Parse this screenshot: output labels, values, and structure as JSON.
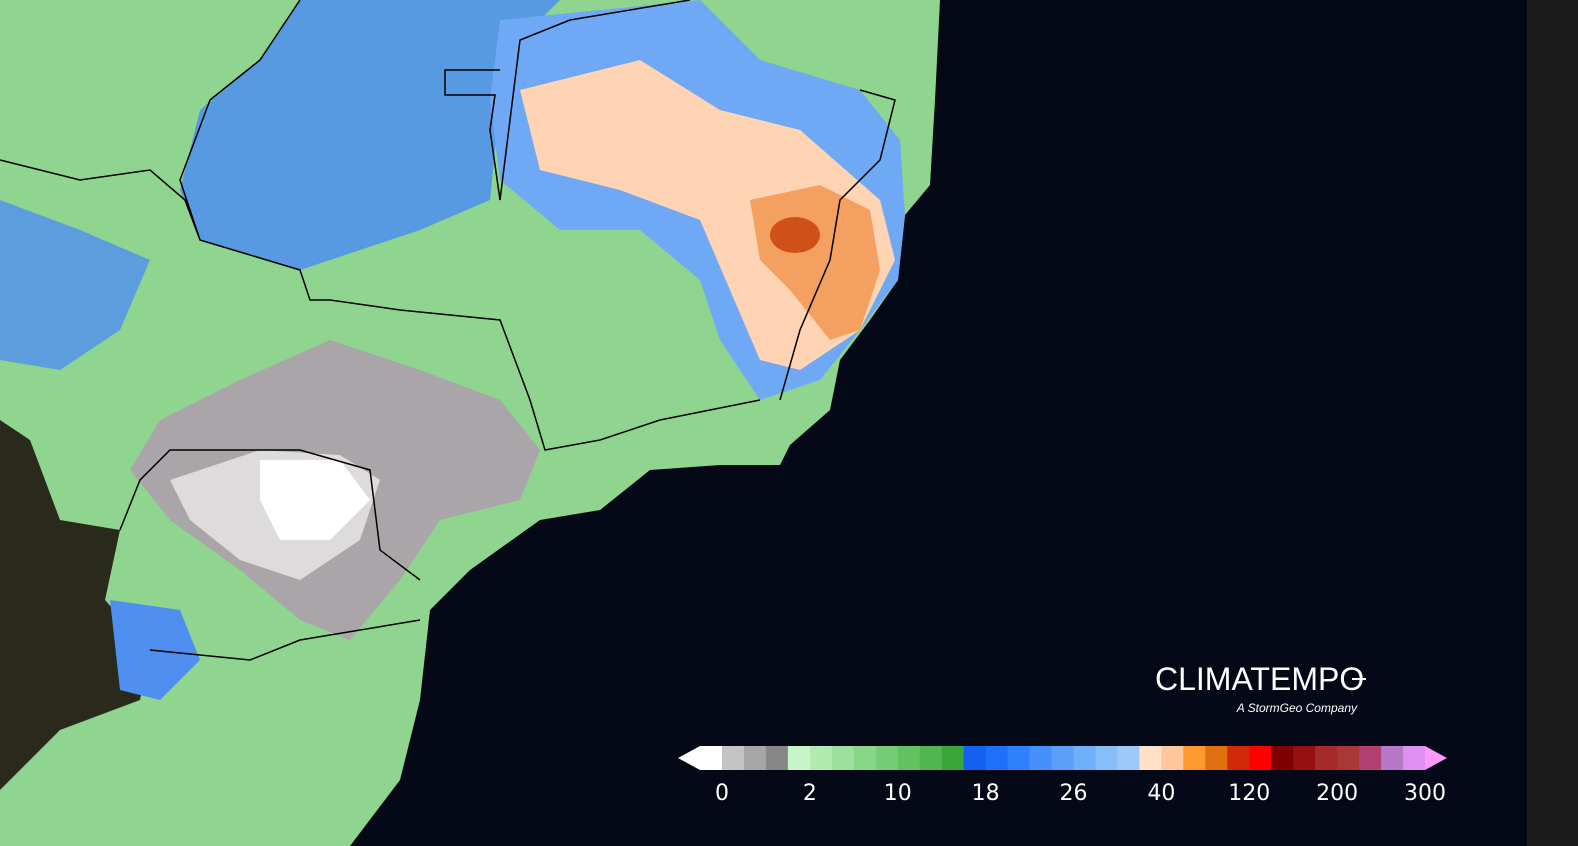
{
  "logo": {
    "title": "CLIMATEMPO",
    "subtitle": "A StormGeo Company"
  },
  "legend": {
    "labels": [
      "0",
      "2",
      "10",
      "18",
      "26",
      "40",
      "120",
      "200",
      "300"
    ],
    "colors": [
      "#ffffff",
      "#ffffff",
      "#c4c4c4",
      "#a6a6a6",
      "#878787",
      "#c8f5c8",
      "#b0ecb0",
      "#9be09b",
      "#88d788",
      "#74cc74",
      "#62c262",
      "#50b650",
      "#3aa63a",
      "#1560f0",
      "#1f70f8",
      "#2f80fa",
      "#4590fa",
      "#5aa0fa",
      "#70b0fa",
      "#86bff8",
      "#9ccaf8",
      "#ffe0c8",
      "#ffc89a",
      "#ff9a30",
      "#e07010",
      "#d02a08",
      "#ff0000",
      "#800000",
      "#961010",
      "#a52a2a",
      "#a83838",
      "#b04070",
      "#b878c8",
      "#e090f0",
      "#ff99ff"
    ]
  }
}
